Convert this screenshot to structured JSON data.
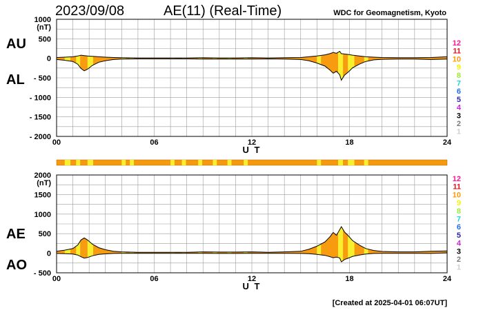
{
  "header": {
    "date": "2023/09/08",
    "title": "AE(11) (Real-Time)",
    "source": "WDC for Geomagnetism, Kyoto"
  },
  "footer": {
    "created": "[Created at 2025-04-01 06:07UT]"
  },
  "colors": {
    "fill": "#f79c10",
    "highlight": "#f8ef2e",
    "band": "#f59a10",
    "grid": "#9a9a9a",
    "trace": "#000000"
  },
  "station_legend": [
    {
      "label": "12",
      "color": "#ff1493"
    },
    {
      "label": "11",
      "color": "#e8101c"
    },
    {
      "label": "10",
      "color": "#ff9a00"
    },
    {
      "label": "9",
      "color": "#f4f400"
    },
    {
      "label": "8",
      "color": "#9dec2e"
    },
    {
      "label": "7",
      "color": "#1fd6d6"
    },
    {
      "label": "6",
      "color": "#1f6fe8"
    },
    {
      "label": "5",
      "color": "#2a1fa8"
    },
    {
      "label": "4",
      "color": "#d61fd6"
    },
    {
      "label": "3",
      "color": "#000000"
    },
    {
      "label": "2",
      "color": "#7a7a7a"
    },
    {
      "label": "1",
      "color": "#cfcfcf"
    }
  ],
  "chart_data": [
    {
      "type": "area",
      "panel": "AU/AL",
      "series_labels": [
        "AU",
        "AL"
      ],
      "ylabel": "(nT)",
      "xlabel": "U T",
      "xlim": [
        0,
        24
      ],
      "ylim": [
        -2000,
        1000
      ],
      "x_ticks": [
        "00",
        "06",
        "12",
        "18",
        "24"
      ],
      "y_ticks": [
        {
          "value": 1000,
          "label": "1000"
        },
        {
          "value": 500,
          "label": "500"
        },
        {
          "value": 0,
          "label": "0"
        },
        {
          "value": -500,
          "label": "- 500"
        },
        {
          "value": -1000,
          "label": "- 1000"
        },
        {
          "value": -1500,
          "label": "- 1500"
        },
        {
          "value": -2000,
          "label": "- 2000"
        }
      ],
      "grid": true,
      "hours": [
        0,
        0.5,
        1,
        1.3,
        1.5,
        1.7,
        1.9,
        2.2,
        2.6,
        3,
        3.5,
        4,
        5,
        6,
        7,
        8,
        9,
        10,
        11,
        12,
        13,
        14,
        15,
        15.5,
        16,
        16.5,
        16.8,
        17,
        17.2,
        17.4,
        17.5,
        17.7,
        17.9,
        18.2,
        18.6,
        19,
        19.5,
        20,
        21,
        22,
        23,
        24
      ],
      "au": [
        20,
        30,
        40,
        60,
        80,
        70,
        60,
        50,
        40,
        30,
        20,
        15,
        10,
        10,
        10,
        10,
        15,
        10,
        10,
        15,
        10,
        15,
        20,
        40,
        60,
        90,
        120,
        150,
        130,
        180,
        120,
        110,
        100,
        80,
        60,
        40,
        30,
        20,
        15,
        15,
        20,
        40
      ],
      "al": [
        -30,
        -50,
        -80,
        -150,
        -260,
        -320,
        -280,
        -180,
        -100,
        -60,
        -30,
        -20,
        -15,
        -15,
        -15,
        -15,
        -20,
        -20,
        -20,
        -20,
        -15,
        -20,
        -30,
        -60,
        -120,
        -200,
        -300,
        -380,
        -330,
        -420,
        -560,
        -430,
        -360,
        -240,
        -150,
        -80,
        -40,
        -25,
        -20,
        -20,
        -30,
        -20
      ]
    },
    {
      "type": "area",
      "panel": "AE/AO",
      "series_labels": [
        "AE",
        "AO"
      ],
      "ylabel": "(nT)",
      "xlabel": "U T",
      "xlim": [
        0,
        24
      ],
      "ylim": [
        -500,
        2000
      ],
      "x_ticks": [
        "00",
        "06",
        "12",
        "18",
        "24"
      ],
      "y_ticks": [
        {
          "value": 2000,
          "label": "2000"
        },
        {
          "value": 1500,
          "label": "1500"
        },
        {
          "value": 1000,
          "label": "1000"
        },
        {
          "value": 500,
          "label": "500"
        },
        {
          "value": 0,
          "label": "0"
        },
        {
          "value": -500,
          "label": "- 500"
        }
      ],
      "grid": true,
      "hours": [
        0,
        0.5,
        1,
        1.3,
        1.5,
        1.7,
        1.9,
        2.2,
        2.6,
        3,
        3.5,
        4,
        5,
        6,
        7,
        8,
        9,
        10,
        11,
        12,
        13,
        14,
        15,
        15.5,
        16,
        16.5,
        16.8,
        17,
        17.2,
        17.4,
        17.5,
        17.7,
        17.9,
        18.2,
        18.6,
        19,
        19.5,
        20,
        21,
        22,
        23,
        24
      ],
      "ae": [
        50,
        80,
        120,
        210,
        340,
        390,
        340,
        230,
        140,
        90,
        50,
        35,
        25,
        25,
        25,
        25,
        35,
        30,
        30,
        35,
        25,
        35,
        50,
        100,
        180,
        290,
        420,
        530,
        460,
        600,
        680,
        540,
        460,
        320,
        210,
        120,
        70,
        45,
        35,
        35,
        50,
        60
      ],
      "ao": [
        -5,
        -10,
        -20,
        -45,
        -90,
        -125,
        -110,
        -65,
        -30,
        -15,
        -5,
        -3,
        -3,
        -3,
        -3,
        -3,
        -3,
        -5,
        -5,
        -3,
        -3,
        -3,
        -5,
        -10,
        -30,
        -55,
        -90,
        -115,
        -100,
        -120,
        -220,
        -160,
        -130,
        -80,
        -45,
        -20,
        -5,
        -3,
        -3,
        -3,
        -5,
        10
      ]
    }
  ],
  "status_band": {
    "normal": "10",
    "highlight": "9",
    "highlight_hours": [
      [
        0.5,
        0.85
      ],
      [
        1.2,
        1.45
      ],
      [
        1.9,
        2.25
      ],
      [
        4.0,
        4.25
      ],
      [
        4.5,
        4.75
      ],
      [
        7.0,
        7.25
      ],
      [
        7.7,
        7.95
      ],
      [
        8.7,
        8.95
      ],
      [
        9.6,
        9.85
      ],
      [
        10.5,
        10.75
      ],
      [
        11.5,
        11.75
      ],
      [
        16.0,
        16.25
      ],
      [
        17.3,
        17.6
      ],
      [
        17.9,
        18.3
      ],
      [
        18.9,
        19.15
      ]
    ]
  }
}
